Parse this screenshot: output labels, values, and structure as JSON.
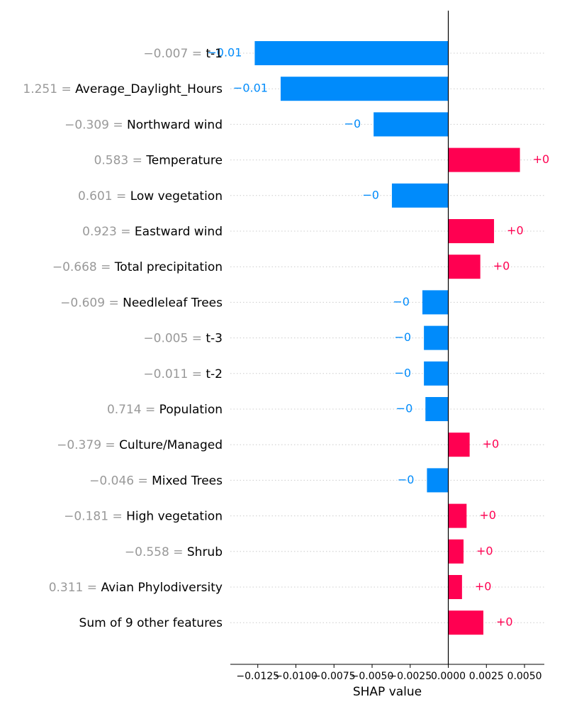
{
  "chart_data": {
    "type": "bar",
    "xlabel": "SHAP value",
    "xlim": [
      -0.0143,
      0.0063
    ],
    "xticks": [
      {
        "value": -0.0125,
        "label": "−0.0125"
      },
      {
        "value": -0.01,
        "label": "−0.0100"
      },
      {
        "value": -0.0075,
        "label": "−0.0075"
      },
      {
        "value": -0.005,
        "label": "−0.0050"
      },
      {
        "value": -0.0025,
        "label": "−0.0025"
      },
      {
        "value": 0.0,
        "label": "0.0000"
      },
      {
        "value": 0.0025,
        "label": "0.0025"
      },
      {
        "value": 0.005,
        "label": "0.0050"
      }
    ],
    "grid": "horizontal dotted",
    "colors": {
      "positive": "#ff0051",
      "negative": "#008bfb",
      "feature_value": "#999999",
      "axis": "#000000",
      "grid": "#cccccc"
    },
    "features": [
      {
        "value_text": "−0.007 =",
        "name": "t-1",
        "shap": -0.0127,
        "label": "−0.01"
      },
      {
        "value_text": "1.251 =",
        "name": "Average_Daylight_Hours",
        "shap": -0.011,
        "label": "−0.01"
      },
      {
        "value_text": "−0.309 =",
        "name": "Northward wind",
        "shap": -0.0049,
        "label": "−0"
      },
      {
        "value_text": "0.583 =",
        "name": "Temperature",
        "shap": 0.0047,
        "label": "+0"
      },
      {
        "value_text": "0.601 =",
        "name": "Low vegetation",
        "shap": -0.0037,
        "label": "−0"
      },
      {
        "value_text": "0.923 =",
        "name": "Eastward wind",
        "shap": 0.003,
        "label": "+0"
      },
      {
        "value_text": "−0.668 =",
        "name": "Total precipitation",
        "shap": 0.0021,
        "label": "+0"
      },
      {
        "value_text": "−0.609 =",
        "name": "Needleleaf Trees",
        "shap": -0.0017,
        "label": "−0"
      },
      {
        "value_text": "−0.005 =",
        "name": "t-3",
        "shap": -0.0016,
        "label": "−0"
      },
      {
        "value_text": "−0.011 =",
        "name": "t-2",
        "shap": -0.0016,
        "label": "−0"
      },
      {
        "value_text": "0.714 =",
        "name": "Population",
        "shap": -0.0015,
        "label": "−0"
      },
      {
        "value_text": "−0.379 =",
        "name": "Culture/Managed",
        "shap": 0.0014,
        "label": "+0"
      },
      {
        "value_text": "−0.046 =",
        "name": "Mixed Trees",
        "shap": -0.0014,
        "label": "−0"
      },
      {
        "value_text": "−0.181 =",
        "name": "High vegetation",
        "shap": 0.0012,
        "label": "+0"
      },
      {
        "value_text": "−0.558 =",
        "name": "Shrub",
        "shap": 0.001,
        "label": "+0"
      },
      {
        "value_text": "0.311 =",
        "name": "Avian Phylodiversity",
        "shap": 0.0009,
        "label": "+0"
      },
      {
        "value_text": "",
        "name": "Sum of 9 other features",
        "shap": 0.0023,
        "label": "+0"
      }
    ]
  }
}
